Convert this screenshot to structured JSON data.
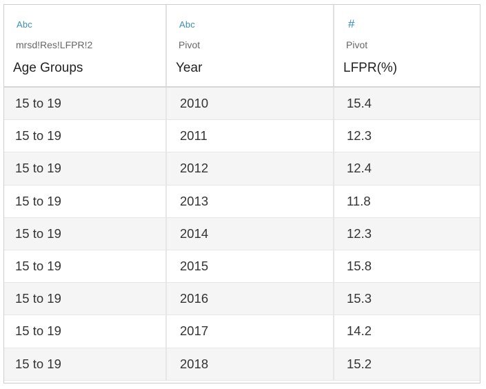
{
  "columns": [
    {
      "type_icon": "Abc",
      "source": "mrsd!Res!LFPR!2",
      "name": "Age Groups"
    },
    {
      "type_icon": "Abc",
      "source": "Pivot",
      "name": "Year"
    },
    {
      "type_icon": "#",
      "source": "Pivot",
      "name": "LFPR(%)"
    }
  ],
  "rows": [
    [
      "15 to 19",
      "2010",
      "15.4"
    ],
    [
      "15 to 19",
      "2011",
      "12.3"
    ],
    [
      "15 to 19",
      "2012",
      "12.4"
    ],
    [
      "15 to 19",
      "2013",
      "11.8"
    ],
    [
      "15 to 19",
      "2014",
      "12.3"
    ],
    [
      "15 to 19",
      "2015",
      "15.8"
    ],
    [
      "15 to 19",
      "2016",
      "15.3"
    ],
    [
      "15 to 19",
      "2017",
      "14.2"
    ],
    [
      "15 to 19",
      "2018",
      "15.2"
    ]
  ],
  "colors": {
    "type_icon": "#3a8fb0",
    "row_alt": "#f5f5f5",
    "grid_line": "#e6e6e6"
  }
}
